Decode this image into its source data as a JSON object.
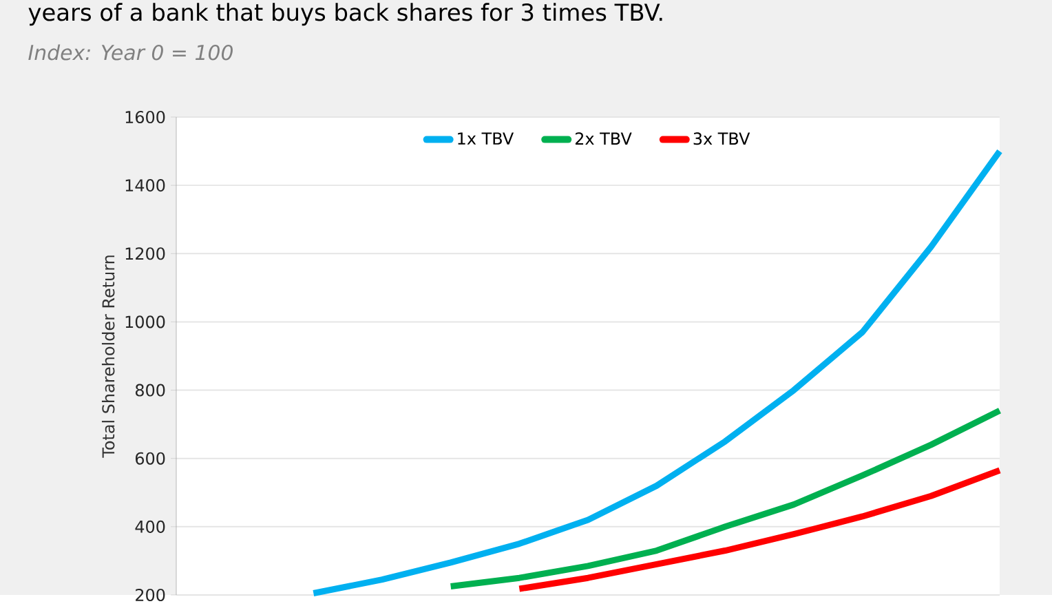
{
  "chart_data": {
    "type": "line",
    "title": "years of a bank that buys back shares for 3 times TBV.",
    "subtitle": "Index: Year 0 = 100",
    "ylabel": "Total Shareholder Return",
    "categories": [
      null,
      null,
      null,
      null,
      null,
      null,
      null,
      null,
      null,
      null,
      null,
      null,
      null
    ],
    "series": [
      {
        "name": "1x TBV",
        "color": "#00b0f0",
        "values": [
          null,
          null,
          205,
          245,
          295,
          350,
          420,
          520,
          650,
          800,
          970,
          1220,
          1500
        ]
      },
      {
        "name": "2x TBV",
        "color": "#00b050",
        "values": [
          null,
          null,
          null,
          null,
          225,
          250,
          285,
          330,
          400,
          465,
          550,
          640,
          740
        ]
      },
      {
        "name": "3x TBV",
        "color": "#ff0000",
        "values": [
          null,
          null,
          null,
          null,
          null,
          218,
          250,
          290,
          330,
          378,
          430,
          490,
          565
        ]
      }
    ],
    "ylim": [
      200,
      1600
    ],
    "yticks": [
      200,
      400,
      600,
      800,
      1000,
      1200,
      1400,
      1600
    ],
    "grid": "y",
    "legend": "top",
    "marker": "none",
    "line_style": "solid"
  }
}
